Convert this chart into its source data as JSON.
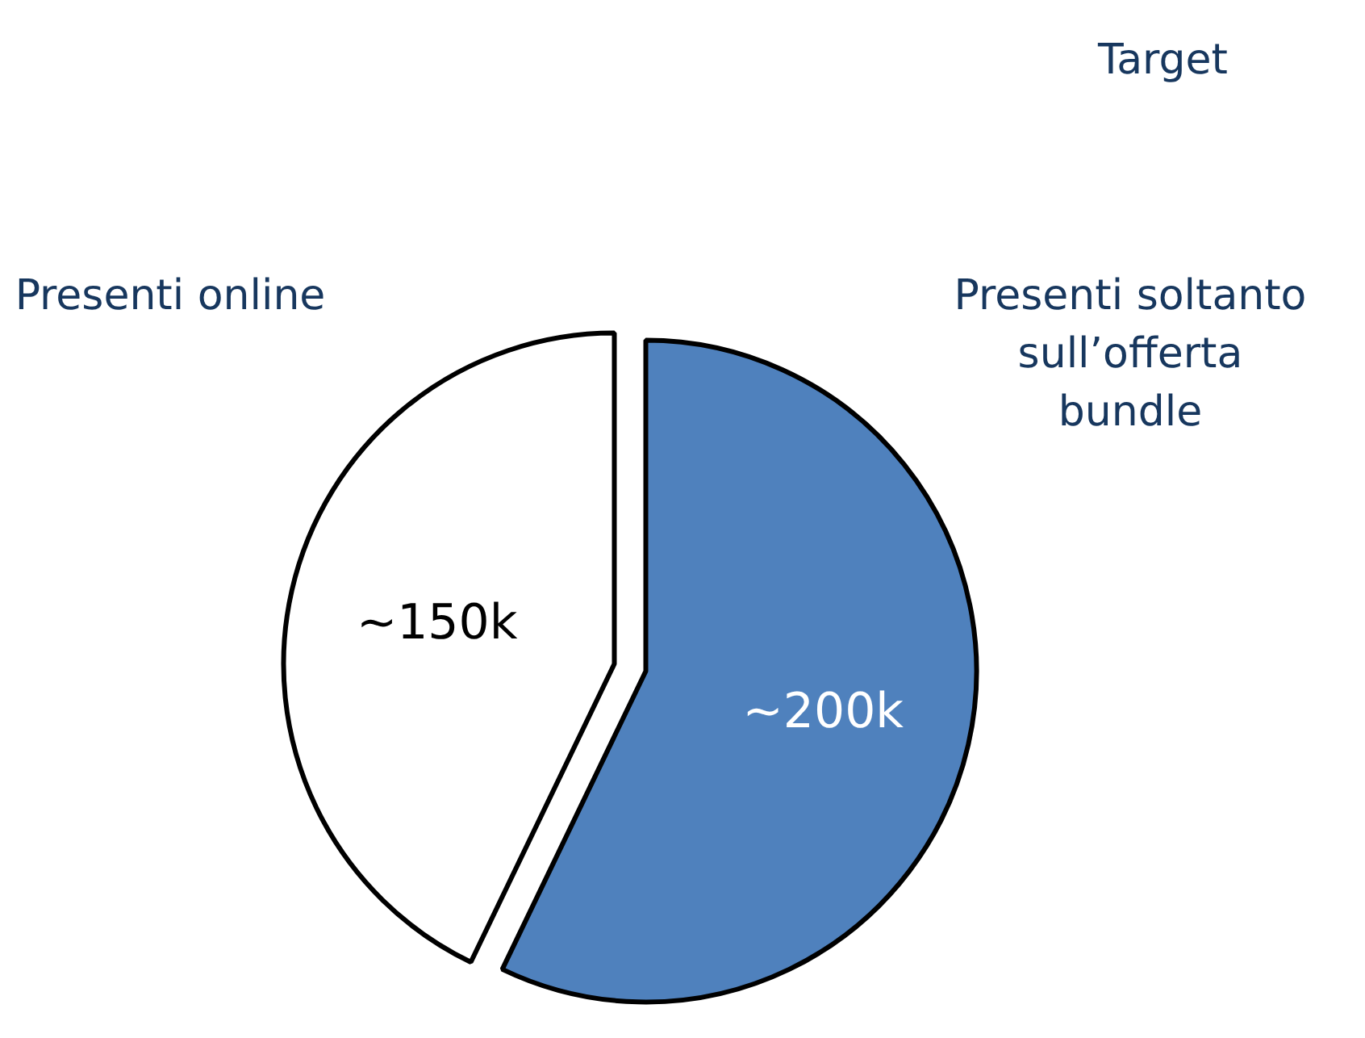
{
  "chart_data": {
    "type": "pie",
    "categories": [
      "Presenti online",
      "Presenti soltanto sull’offerta bundle"
    ],
    "values": [
      150,
      200
    ],
    "value_labels": [
      "~150k",
      "~200k"
    ],
    "colors": [
      "#ffffff",
      "#4f81bd"
    ],
    "annotations": [
      "Target"
    ]
  }
}
